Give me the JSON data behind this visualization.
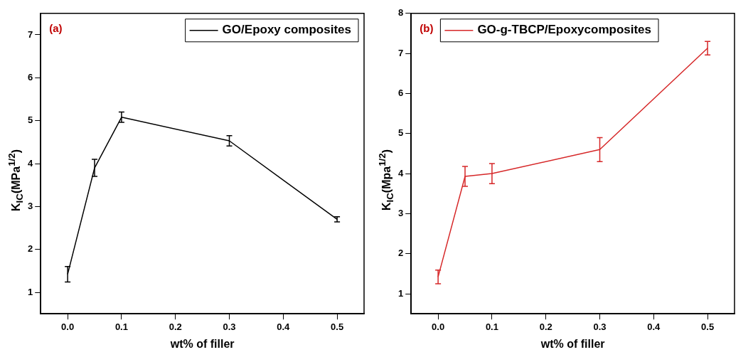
{
  "chart_data": [
    {
      "type": "line",
      "xlabel": "wt% of filler",
      "ylabel": "K$_{IC}$(MPa$^{1/2}$)",
      "annotations": [
        "(a)"
      ],
      "x": [
        0,
        0.05,
        0.1,
        0.3,
        0.5
      ],
      "series": [
        {
          "name": "GO/Epoxy composites",
          "color": "#000000",
          "values": [
            1.42,
            3.9,
            5.08,
            4.53,
            2.7
          ],
          "errors": [
            0.18,
            0.2,
            0.12,
            0.12,
            0.06
          ]
        }
      ],
      "xlim": [
        -0.05,
        0.55
      ],
      "xticks": [
        {
          "value": 0,
          "label": "0.0"
        },
        0.1,
        0.2,
        0.3,
        0.4,
        0.5
      ],
      "ylim": [
        0.5,
        7.5
      ],
      "yticks": [
        1,
        2,
        3,
        4,
        5,
        6,
        7
      ],
      "grid": false,
      "legend": "top right",
      "marker": "none",
      "line_style": "solid"
    },
    {
      "type": "line",
      "xlabel": "wt% of filler",
      "ylabel": "K$_{IC}$(Mpa$^{1/2}$)",
      "annotations": [
        "(b)"
      ],
      "x": [
        0,
        0.05,
        0.1,
        0.3,
        0.5
      ],
      "series": [
        {
          "name": "GO-g-TBCP/Epoxycomposites",
          "color": "#d62728",
          "values": [
            1.42,
            3.93,
            4.0,
            4.6,
            7.13
          ],
          "errors": [
            0.17,
            0.25,
            0.25,
            0.3,
            0.17
          ]
        }
      ],
      "xlim": [
        -0.05,
        0.55
      ],
      "xticks": [
        {
          "value": 0,
          "label": "0.0"
        },
        0.1,
        0.2,
        0.3,
        0.4,
        0.5
      ],
      "ylim": [
        0.5,
        8
      ],
      "yticks": [
        1,
        2,
        3,
        4,
        5,
        6,
        7,
        8
      ],
      "grid": false,
      "legend": "top left",
      "marker": "none",
      "line_style": "solid"
    }
  ]
}
